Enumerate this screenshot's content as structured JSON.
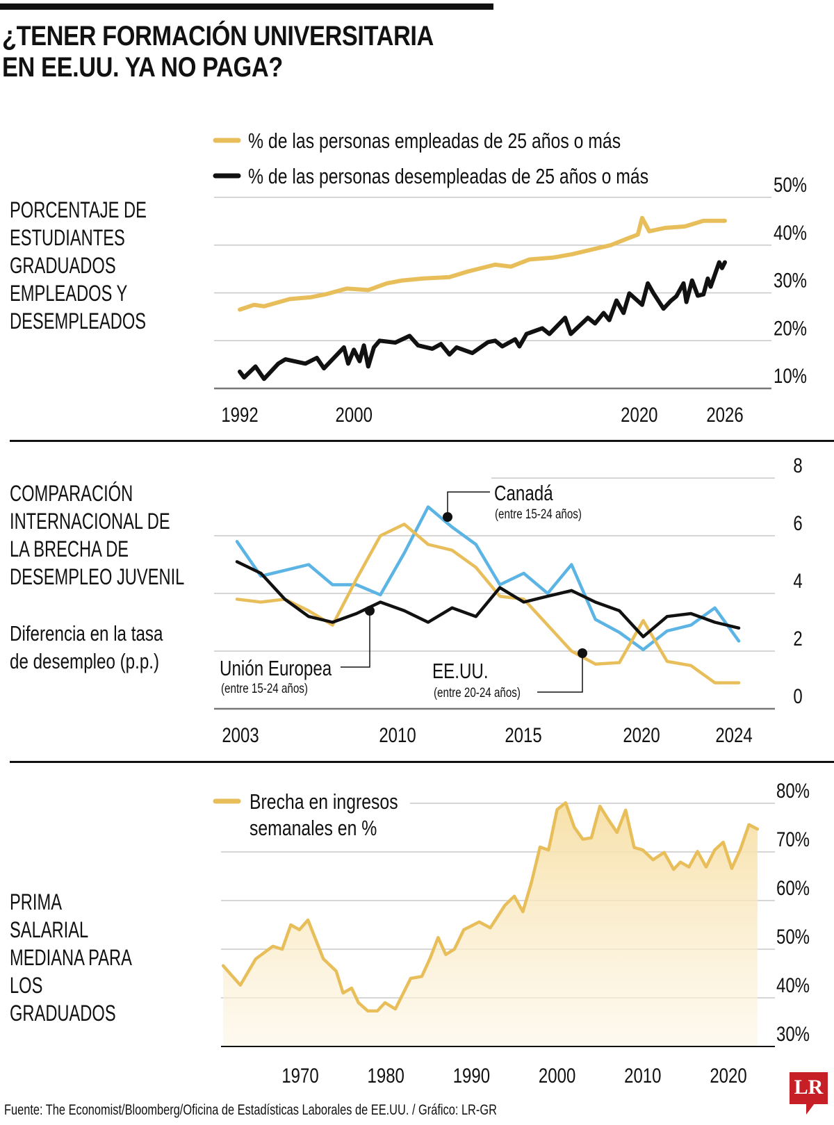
{
  "header": {
    "title_line1": "¿TENER FORMACIÓN UNIVERSITARIA",
    "title_line2": "EN EE.UU. YA NO PAGA?"
  },
  "sections": {
    "s1": {
      "label_lines": [
        "PORCENTAJE DE",
        "ESTUDIANTES",
        "GRADUADOS",
        "EMPLEADOS Y",
        "DESEMPLEADOS"
      ]
    },
    "s2": {
      "label_lines": [
        "COMPARACIÓN",
        "INTERNACIONAL DE",
        "LA BRECHA DE",
        "DESEMPLEO JUVENIL"
      ],
      "sub_lines": [
        "Diferencia en la tasa",
        "de desempleo (p.p.)"
      ]
    },
    "s3": {
      "label_lines": [
        "PRIMA",
        "SALARIAL",
        "MEDIANA PARA",
        "LOS",
        "GRADUADOS"
      ]
    }
  },
  "colors": {
    "yellow": "#e8be5a",
    "black": "#111111",
    "blue": "#5cb4e4",
    "grid": "#c8c8c8",
    "axis": "#777777",
    "area_top": "#f7dfa4",
    "brand_red": "#c62026"
  },
  "chart_data": [
    {
      "type": "line",
      "title": "PORCENTAJE DE ESTUDIANTES GRADUADOS EMPLEADOS Y DESEMPLEADOS",
      "xlabel": "",
      "ylabel": "",
      "xlim": [
        1992,
        2030
      ],
      "ylim": [
        10,
        50
      ],
      "x_ticks": [
        1992,
        2000,
        2020,
        2026
      ],
      "x_tick_labels": [
        "1992",
        "2000",
        "2020",
        "2026"
      ],
      "y_ticks": [
        10,
        20,
        30,
        40,
        50
      ],
      "y_tick_labels": [
        "10%",
        "20%",
        "30%",
        "40%",
        "50%"
      ],
      "grid": true,
      "legend_position": "top",
      "series": [
        {
          "name": "% de las personas empleadas de 25 años o más",
          "color": "#e8be5a",
          "x": [
            1992,
            1993,
            1993.7,
            1995.5,
            1997,
            1998,
            1999.5,
            2001,
            2002.3,
            2003.4,
            2004.8,
            2006.7,
            2008,
            2009.9,
            2011,
            2012.3,
            2014,
            2015.3,
            2017,
            2018,
            2019.1,
            2019.9,
            2020.2,
            2020.7,
            2021.8,
            2023.2,
            2024.5,
            2026
          ],
          "values": [
            26.5,
            27.5,
            27.2,
            28.7,
            29.1,
            29.7,
            30.9,
            30.6,
            32.0,
            32.6,
            33.0,
            33.3,
            34.5,
            35.9,
            35.5,
            37.0,
            37.4,
            38.1,
            39.3,
            40.0,
            41.3,
            42.2,
            45.7,
            42.9,
            43.6,
            43.9,
            45.1,
            45.1
          ]
        },
        {
          "name": "% de las personas desempleadas de 25 años o más",
          "color": "#111111",
          "x": [
            1992,
            1992.3,
            1993.1,
            1993.7,
            1994.7,
            1995.2,
            1996.6,
            1997.4,
            1997.9,
            1999.3,
            1999.6,
            2000,
            2000.4,
            2000.7,
            2001,
            2001.4,
            2001.8,
            2002.9,
            2003.9,
            2004.5,
            2005.5,
            2006.1,
            2006.7,
            2007.2,
            2008.3,
            2009.4,
            2009.9,
            2010.4,
            2011.3,
            2011.6,
            2012.1,
            2013.2,
            2013.7,
            2014.8,
            2015.2,
            2016.4,
            2016.9,
            2017.5,
            2017.9,
            2018.4,
            2018.9,
            2019.3,
            2020.2,
            2020.6,
            2021,
            2021.7,
            2022.2,
            2022.6,
            2023.1,
            2023.3,
            2023.7,
            2024.1,
            2024.5,
            2024.8,
            2025,
            2025.6,
            2025.8,
            2026
          ],
          "values": [
            13.5,
            12.3,
            14.6,
            12.0,
            15.2,
            16.1,
            15.2,
            16.4,
            14.2,
            18.6,
            15.2,
            18.1,
            15.7,
            19.0,
            14.6,
            18.6,
            20.0,
            19.6,
            21.0,
            19.0,
            18.3,
            19.3,
            17.1,
            18.6,
            17.4,
            19.7,
            20.0,
            18.8,
            20.3,
            18.8,
            21.4,
            22.6,
            21.4,
            24.8,
            21.4,
            24.8,
            23.6,
            25.8,
            24.3,
            28.4,
            25.8,
            29.9,
            27.5,
            32.0,
            29.9,
            26.7,
            28.3,
            29.3,
            32.0,
            28.1,
            32.6,
            29.4,
            29.7,
            33.0,
            31.3,
            36.4,
            35.2,
            36.4
          ]
        }
      ]
    },
    {
      "type": "line",
      "title": "COMPARACIÓN INTERNACIONAL DE LA BRECHA DE DESEMPLEO JUVENIL",
      "subtitle": "Diferencia en la tasa de desempleo (p.p.)",
      "xlabel": "",
      "ylabel": "",
      "xlim": [
        2003,
        2024
      ],
      "ylim": [
        0,
        8
      ],
      "x_ticks": [
        2003,
        2010,
        2015,
        2020,
        2024
      ],
      "x_tick_labels": [
        "2003",
        "2010",
        "2015",
        "2020",
        "2024"
      ],
      "y_ticks": [
        0,
        2,
        4,
        6,
        8
      ],
      "y_tick_labels": [
        "0",
        "2",
        "4",
        "6",
        "8"
      ],
      "grid": true,
      "legend_position": "inline-annotations",
      "x": [
        2003,
        2004,
        2005,
        2006,
        2007,
        2008,
        2009,
        2010,
        2011,
        2012,
        2013,
        2014,
        2015,
        2016,
        2017,
        2018,
        2019,
        2020,
        2021,
        2022,
        2023,
        2024
      ],
      "series": [
        {
          "name": "Canadá",
          "note": "(entre 15-24 años)",
          "color": "#5cb4e4",
          "values": [
            5.8,
            4.6,
            4.8,
            5.0,
            4.3,
            4.3,
            3.95,
            5.4,
            7.0,
            6.3,
            5.7,
            4.3,
            4.7,
            4.0,
            5.0,
            3.1,
            2.65,
            2.05,
            2.7,
            2.9,
            3.5,
            2.35
          ]
        },
        {
          "name": "Unión Europea",
          "note": "(entre 15-24 años)",
          "color": "#111111",
          "values": [
            5.1,
            4.7,
            3.8,
            3.2,
            3.0,
            3.3,
            3.7,
            3.4,
            3.0,
            3.5,
            3.2,
            4.2,
            3.7,
            3.9,
            4.1,
            3.7,
            3.4,
            2.5,
            3.2,
            3.3,
            3.0,
            2.8
          ]
        },
        {
          "name": "EE.UU.",
          "note": "(entre 20-24 años)",
          "color": "#e8be5a",
          "values": [
            3.8,
            3.7,
            3.8,
            3.4,
            2.9,
            4.5,
            6.0,
            6.4,
            5.7,
            5.5,
            4.9,
            3.9,
            3.8,
            2.9,
            2.0,
            1.55,
            1.6,
            3.06,
            1.64,
            1.5,
            0.9,
            0.9
          ]
        }
      ],
      "annotations": [
        {
          "label": "Canadá",
          "note": "(entre 15-24 años)",
          "series": "Canadá",
          "x": 2011.8,
          "y": 6.8
        },
        {
          "label": "Unión Europea",
          "note": "(entre 15-24 años)",
          "series": "Unión Europea",
          "x": 2008.5,
          "y": 3.4
        },
        {
          "label": "EE.UU.",
          "note": "(entre 20-24 años)",
          "series": "EE.UU.",
          "x": 2017.4,
          "y": 1.95
        }
      ]
    },
    {
      "type": "area",
      "title": "PRIMA SALARIAL MEDIANA PARA LOS GRADUADOS",
      "xlabel": "",
      "ylabel": "",
      "xlim": [
        1961,
        2024
      ],
      "ylim": [
        30,
        80
      ],
      "x_ticks": [
        1970,
        1980,
        1990,
        2000,
        2010,
        2020
      ],
      "x_tick_labels": [
        "1970",
        "1980",
        "1990",
        "2000",
        "2010",
        "2020"
      ],
      "y_ticks": [
        30,
        40,
        50,
        60,
        70,
        80
      ],
      "y_tick_labels": [
        "30%",
        "40%",
        "50%",
        "60%",
        "70%",
        "80%"
      ],
      "grid": true,
      "legend_position": "top-left",
      "series": [
        {
          "name": "Brecha en ingresos semanales en %",
          "color": "#e8be5a",
          "x": [
            1961,
            1963,
            1964.8,
            1966.8,
            1967.9,
            1968.9,
            1969.9,
            1970.9,
            1972.7,
            1974.2,
            1975,
            1976,
            1976.8,
            1977.9,
            1979,
            1979.9,
            1981.1,
            1982.9,
            1984.2,
            1985.2,
            1986.1,
            1987,
            1988,
            1989.1,
            1990.9,
            1992.2,
            1993.9,
            1995,
            1996,
            1997,
            1998,
            1999,
            2000,
            2001,
            2002,
            2003,
            2004,
            2005,
            2006,
            2007,
            2008,
            2009,
            2010,
            2011.2,
            2012.5,
            2013.6,
            2014.4,
            2015.4,
            2016.4,
            2017.4,
            2018.4,
            2019.4,
            2020.4,
            2021.4,
            2022.4,
            2023.4
          ],
          "values": [
            46.6,
            42.6,
            48,
            50.6,
            50,
            55,
            54,
            56,
            48,
            45.5,
            41,
            42,
            39,
            37.3,
            37.3,
            39,
            37.7,
            44,
            44.4,
            48.3,
            52.4,
            48.9,
            50,
            54,
            55.6,
            54.4,
            59,
            60.9,
            57.7,
            63.7,
            71,
            70.4,
            78.7,
            80.1,
            75.1,
            72.6,
            72.9,
            79.4,
            76.6,
            74,
            78.6,
            70.9,
            70.4,
            68.4,
            69.9,
            66.4,
            67.9,
            66.9,
            70.1,
            66.9,
            70.4,
            72,
            66.6,
            70.5,
            75.6,
            74.7
          ]
        }
      ]
    }
  ],
  "footer": {
    "source": "Fuente: The Economist/Bloomberg/Oficina de Estadísticas Laborales de EE.UU. / Gráfico: LR-GR"
  },
  "logo": {
    "text": "LR"
  }
}
